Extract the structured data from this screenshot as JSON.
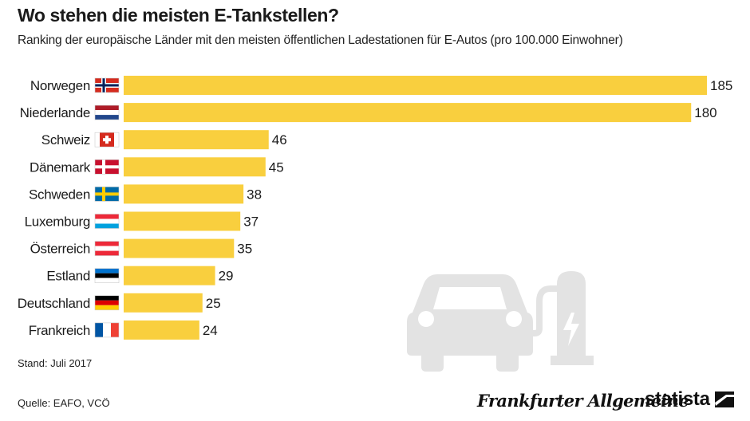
{
  "header": {
    "title": "Wo stehen die meisten E-Tankstellen?",
    "subtitle": "Ranking der europäische Länder mit den meisten öffentlichen Ladestationen für E-Autos (pro 100.000 Einwohner)"
  },
  "chart_data": {
    "type": "bar",
    "orientation": "horizontal",
    "title": "Wo stehen die meisten E-Tankstellen?",
    "subtitle": "Ranking der europäische Länder mit den meisten öffentlichen Ladestationen für E-Autos (pro 100.000 Einwohner)",
    "categories": [
      "Norwegen",
      "Niederlande",
      "Schweiz",
      "Dänemark",
      "Schweden",
      "Luxemburg",
      "Österreich",
      "Estland",
      "Deutschland",
      "Frankreich"
    ],
    "values": [
      185,
      180,
      46,
      45,
      38,
      37,
      35,
      29,
      25,
      24
    ],
    "value_labels": [
      "185",
      "180",
      "46",
      "45",
      "38",
      "37",
      "35",
      "29",
      "25",
      "24"
    ],
    "xlim": [
      0,
      185
    ],
    "grid": false,
    "bar_color": "#f9cf3e",
    "flags": [
      "flag-norway-icon",
      "flag-netherlands-icon",
      "flag-switzerland-icon",
      "flag-denmark-icon",
      "flag-sweden-icon",
      "flag-luxembourg-icon",
      "flag-austria-icon",
      "flag-estonia-icon",
      "flag-germany-icon",
      "flag-france-icon"
    ]
  },
  "footer": {
    "stand": "Stand: Juli 2017",
    "source": "Quelle: EAFO, VCÖ",
    "brand_faz": "Frankfurter Allgemeine",
    "brand_statista": "statista"
  },
  "colors": {
    "bar": "#f9cf3e",
    "illustration": "#e3e3e3",
    "text": "#1a1a1a"
  }
}
